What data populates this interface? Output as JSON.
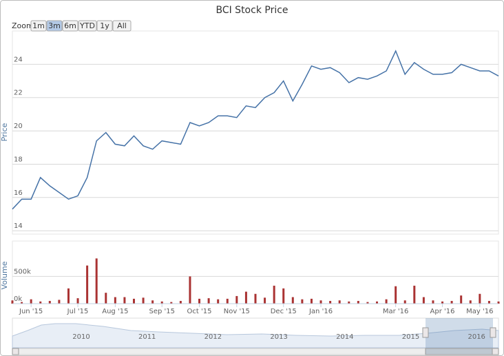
{
  "zoom": {
    "label": "Zoom",
    "buttons": [
      "1m",
      "3m",
      "6m",
      "YTD",
      "1y",
      "All"
    ],
    "selected": "3m"
  },
  "navigator": {
    "labels": [
      "2010",
      "2011",
      "2012",
      "2013",
      "2014",
      "2015",
      "2016"
    ]
  },
  "chart_data": [
    {
      "type": "line",
      "title": "BCI Stock Price",
      "ylabel": "Price",
      "color": "#4572a7",
      "values": [
        15.3,
        15.9,
        15.9,
        17.2,
        16.7,
        16.3,
        15.9,
        16.1,
        17.2,
        19.4,
        19.9,
        19.2,
        19.1,
        19.7,
        19.1,
        18.9,
        19.4,
        19.3,
        19.2,
        20.5,
        20.3,
        20.5,
        20.9,
        20.9,
        20.8,
        21.5,
        21.4,
        22.0,
        22.3,
        23.0,
        21.8,
        22.8,
        23.9,
        23.7,
        23.8,
        23.5,
        22.9,
        23.2,
        23.1,
        23.3,
        23.6,
        24.8,
        23.4,
        24.1,
        23.7,
        23.4,
        23.4,
        23.5,
        24.0,
        23.8,
        23.6,
        23.6,
        23.3
      ],
      "ylim": [
        13.8,
        26
      ],
      "yticks": [
        14,
        16,
        18,
        20,
        22,
        24
      ],
      "grid": true
    },
    {
      "type": "bar",
      "ylabel": "Volume",
      "color": "#aa3333",
      "categories": [
        null,
        null,
        "Jun '15",
        null,
        null,
        null,
        null,
        "Jul '15",
        null,
        null,
        null,
        "Aug '15",
        null,
        null,
        null,
        null,
        "Sep '15",
        null,
        null,
        null,
        "Oct '15",
        null,
        null,
        null,
        "Nov '15",
        null,
        null,
        null,
        null,
        "Dec '15",
        null,
        null,
        null,
        "Jan '16",
        null,
        null,
        null,
        null,
        null,
        null,
        null,
        "Mar '16",
        null,
        null,
        null,
        null,
        "Apr '16",
        null,
        null,
        null,
        "May '16",
        null,
        null
      ],
      "values": [
        60000,
        30000,
        80000,
        40000,
        50000,
        70000,
        280000,
        100000,
        700000,
        830000,
        200000,
        120000,
        120000,
        90000,
        110000,
        60000,
        40000,
        30000,
        50000,
        500000,
        90000,
        100000,
        80000,
        90000,
        140000,
        220000,
        180000,
        110000,
        330000,
        280000,
        120000,
        80000,
        90000,
        60000,
        50000,
        60000,
        40000,
        50000,
        30000,
        40000,
        80000,
        320000,
        60000,
        330000,
        120000,
        60000,
        40000,
        50000,
        150000,
        60000,
        180000,
        50000,
        40000
      ],
      "ylim": [
        0,
        1150000
      ],
      "yticks": [
        {
          "value": 0,
          "label": "0k"
        },
        {
          "value": 500000,
          "label": "500k"
        }
      ],
      "grid": true
    }
  ]
}
